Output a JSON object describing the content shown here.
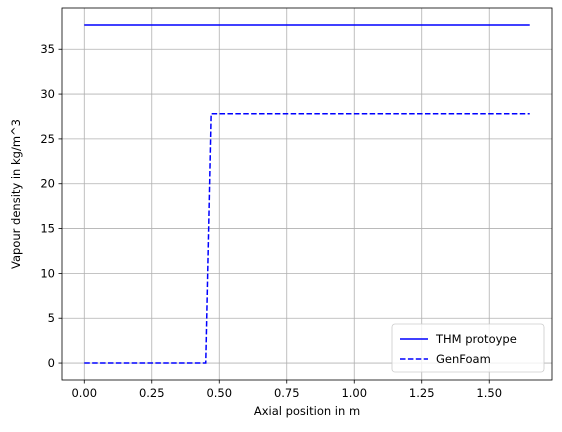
{
  "chart_data": {
    "type": "line",
    "title": "",
    "xlabel": "Axial position in m",
    "ylabel": "Vapour density in kg/m^3",
    "xlim": [
      -0.0825,
      1.7325
    ],
    "ylim": [
      -1.89,
      39.6
    ],
    "xticks": [
      0.0,
      0.25,
      0.5,
      0.75,
      1.0,
      1.25,
      1.5
    ],
    "xtick_labels": [
      "0.00",
      "0.25",
      "0.50",
      "0.75",
      "1.00",
      "1.25",
      "1.50"
    ],
    "yticks": [
      0,
      5,
      10,
      15,
      20,
      25,
      30,
      35
    ],
    "ytick_labels": [
      "0",
      "5",
      "10",
      "15",
      "20",
      "25",
      "30",
      "35"
    ],
    "grid": true,
    "legend_position": "lower-right",
    "series": [
      {
        "name": "THM protoype",
        "color": "#0000ff",
        "linestyle": "solid",
        "x": [
          0.0,
          1.65
        ],
        "y": [
          37.7,
          37.7
        ]
      },
      {
        "name": "GenFoam",
        "color": "#0000ff",
        "linestyle": "dashed",
        "x": [
          0.0,
          0.45,
          0.47,
          1.65
        ],
        "y": [
          0.0,
          0.0,
          27.8,
          27.8
        ]
      }
    ]
  }
}
